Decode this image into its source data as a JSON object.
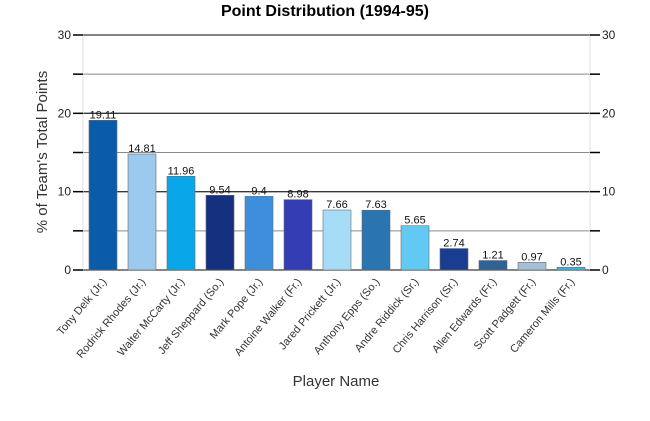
{
  "chart_data": {
    "type": "bar",
    "title": "Point Distribution (1994-95)",
    "xlabel": "Player Name",
    "ylabel": "% of Team's Total Points",
    "ylim": [
      0,
      30
    ],
    "yticks": [
      0,
      10,
      20,
      30
    ],
    "grid": true,
    "categories": [
      "Tony Delk (Jr.)",
      "Rodrick Rhodes (Jr.)",
      "Walter McCarty (Jr.)",
      "Jeff Sheppard (So.)",
      "Mark Pope (Jr.)",
      "Antoine Walker (Fr.)",
      "Jared Prickett (Jr.)",
      "Anthony Epps (So.)",
      "Andre Riddick (Sr.)",
      "Chris Harrison (Sr.)",
      "Allen Edwards (Fr.)",
      "Scott Padgett (Fr.)",
      "Cameron Mills (Fr.)"
    ],
    "values": [
      19.11,
      14.81,
      11.96,
      9.54,
      9.4,
      8.98,
      7.66,
      7.63,
      5.65,
      2.74,
      1.21,
      0.97,
      0.35
    ],
    "data_labels": [
      "19.11",
      "14.81",
      "11.96",
      "9.54",
      "9.4",
      "8.98",
      "7.66",
      "7.63",
      "5.65",
      "2.74",
      "1.21",
      "0.97",
      "0.35"
    ],
    "colors": [
      "#0b5ca8",
      "#9cc9ee",
      "#0aa6ea",
      "#14307f",
      "#3d8fdc",
      "#353db5",
      "#a6dcf6",
      "#2a74b0",
      "#62c9f4",
      "#1a3d91",
      "#2f6395",
      "#a4bfd6",
      "#3bb4e6"
    ]
  }
}
